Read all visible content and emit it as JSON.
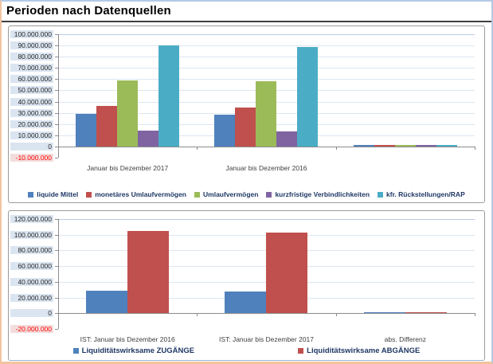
{
  "page": {
    "title": "Perioden nach Datenquellen"
  },
  "chart_data": [
    {
      "type": "bar",
      "title": "",
      "categories": [
        "Januar bis Dezember 2017",
        "Januar bis Dezember 2016",
        ""
      ],
      "series": [
        {
          "name": "liquide Mittel",
          "color": "#4F81BD",
          "values": [
            29000000,
            28000000,
            1000000
          ]
        },
        {
          "name": "monetäres Umlaufvermögen",
          "color": "#C0504D",
          "values": [
            36000000,
            35000000,
            1000000
          ]
        },
        {
          "name": "Umlaufvermögen",
          "color": "#9BBB59",
          "values": [
            59000000,
            58000000,
            1000000
          ]
        },
        {
          "name": "kurzfristige Verbindlichkeiten",
          "color": "#8064A2",
          "values": [
            14000000,
            13500000,
            500000
          ]
        },
        {
          "name": "kfr. Rückstellungen/RAP",
          "color": "#4BACC6",
          "values": [
            90000000,
            89000000,
            1000000
          ]
        }
      ],
      "ylim": [
        -10000000,
        100000000
      ],
      "ytick_step": 10000000,
      "grid": true,
      "legend_position": "bottom",
      "negative_tick_color": "#ff0000"
    },
    {
      "type": "bar",
      "title": "",
      "categories": [
        "IST: Januar bis Dezember 2016",
        "IST: Januar bis Dezember 2017",
        "abs. Differenz"
      ],
      "series": [
        {
          "name": "Liquiditätswirksame ZUGÄNGE",
          "color": "#4F81BD",
          "values": [
            28500000,
            27500000,
            1000000
          ]
        },
        {
          "name": "Liquiditätswirksame ABGÄNGE",
          "color": "#C0504D",
          "values": [
            104500000,
            103000000,
            1500000
          ]
        }
      ],
      "ylim": [
        -20000000,
        120000000
      ],
      "ytick_step": 20000000,
      "grid": true,
      "legend_position": "bottom",
      "negative_tick_color": "#ff0000"
    }
  ]
}
